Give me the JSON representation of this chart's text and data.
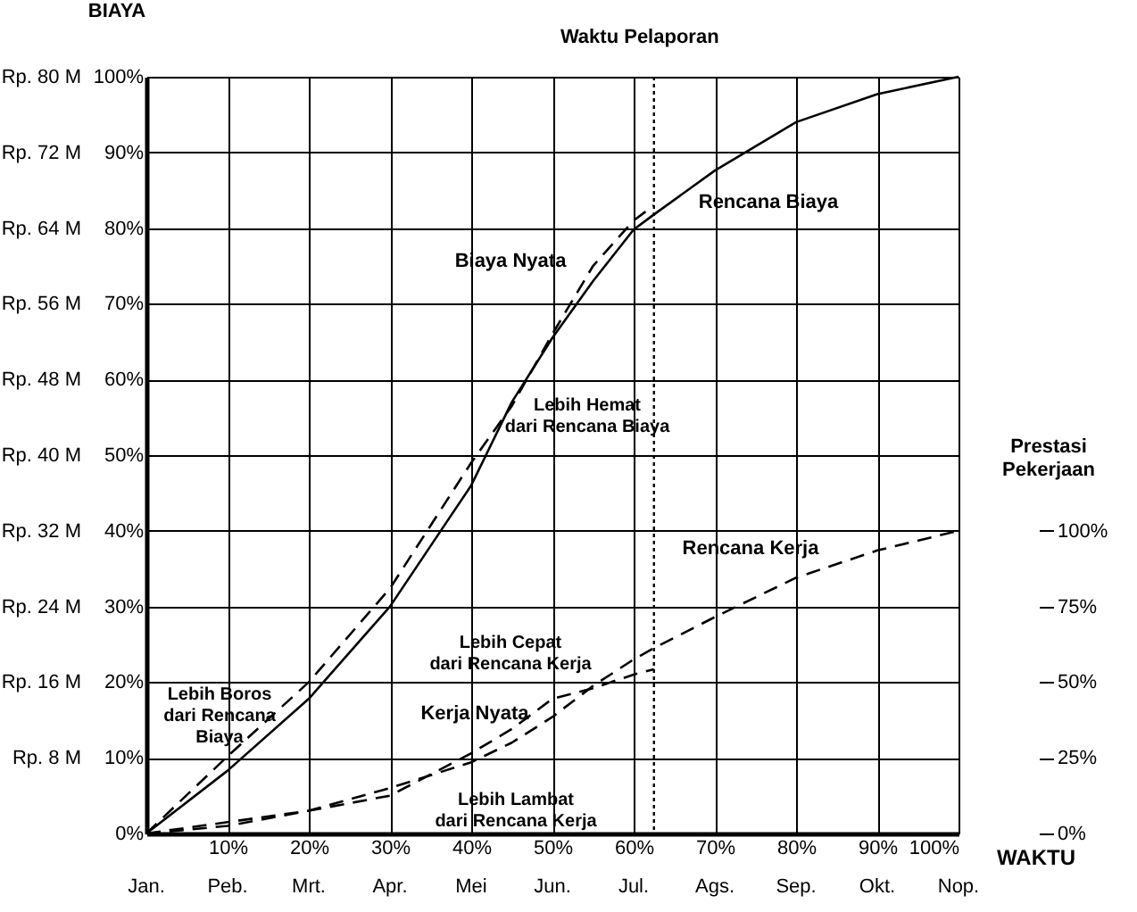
{
  "chart_data": {
    "type": "line",
    "xlabel": "WAKTU",
    "ylabel": "BIAYA",
    "y2label": "Prestasi\nPekerjaan",
    "xlim": [
      0,
      100
    ],
    "xticks": [
      {
        "value": 10,
        "label": "10%"
      },
      {
        "value": 20,
        "label": "20%"
      },
      {
        "value": 30,
        "label": "30%"
      },
      {
        "value": 40,
        "label": "40%"
      },
      {
        "value": 50,
        "label": "50%"
      },
      {
        "value": 60,
        "label": "60%"
      },
      {
        "value": 70,
        "label": "70%"
      },
      {
        "value": 80,
        "label": "80%"
      },
      {
        "value": 90,
        "label": "90%"
      },
      {
        "value": 100,
        "label": "100%"
      }
    ],
    "ylim": [
      0,
      100
    ],
    "yticks": [
      {
        "value": 0,
        "label": "0%"
      },
      {
        "value": 10,
        "label": "10%"
      },
      {
        "value": 20,
        "label": "20%"
      },
      {
        "value": 30,
        "label": "30%"
      },
      {
        "value": 40,
        "label": "40%"
      },
      {
        "value": 50,
        "label": "50%"
      },
      {
        "value": 60,
        "label": "60%"
      },
      {
        "value": 70,
        "label": "70%"
      },
      {
        "value": 80,
        "label": "80%"
      },
      {
        "value": 90,
        "label": "90%"
      },
      {
        "value": 100,
        "label": "100%"
      }
    ],
    "y3lim": [
      0,
      80
    ],
    "y3ticks": [
      {
        "value": 8,
        "label": "Rp. 8 M"
      },
      {
        "value": 16,
        "label": "Rp. 16 M"
      },
      {
        "value": 24,
        "label": "Rp. 24 M"
      },
      {
        "value": 32,
        "label": "Rp. 32 M"
      },
      {
        "value": 40,
        "label": "Rp. 40 M"
      },
      {
        "value": 48,
        "label": "Rp. 48 M"
      },
      {
        "value": 56,
        "label": "Rp. 56 M"
      },
      {
        "value": 64,
        "label": "Rp. 64 M"
      },
      {
        "value": 72,
        "label": "Rp. 72 M"
      },
      {
        "value": 80,
        "label": "Rp. 80 M"
      }
    ],
    "y2lim": [
      0,
      250
    ],
    "y2ticks": [
      {
        "value": 0,
        "label": "0%"
      },
      {
        "value": 25,
        "label": "25%"
      },
      {
        "value": 50,
        "label": "50%"
      },
      {
        "value": 75,
        "label": "75%"
      },
      {
        "value": 100,
        "label": "100%"
      }
    ],
    "grid": true,
    "legend": false,
    "series": [
      {
        "name": "Rencana Biaya",
        "color": "#000000",
        "line_style": "solid",
        "x": [
          0,
          10,
          20,
          30,
          40,
          45,
          50,
          55,
          60,
          62.5,
          70,
          80,
          90,
          100
        ],
        "values": [
          0,
          8.3,
          17.8,
          30,
          46,
          57,
          65.5,
          73,
          79.8,
          81.8,
          87.6,
          94,
          97.7,
          100
        ]
      },
      {
        "name": "Biaya Nyata",
        "color": "#000000",
        "line_style": "dashed",
        "x": [
          0,
          10,
          20,
          30,
          40,
          45,
          50,
          55,
          60,
          62.5
        ],
        "values": [
          0,
          10.2,
          20,
          32.4,
          49,
          56.5,
          66,
          75,
          81,
          83
        ]
      },
      {
        "name": "Rencana Kerja",
        "color": "#000000",
        "line_style": "dashed",
        "x": [
          0,
          10,
          20,
          30,
          40,
          45,
          50,
          55,
          60,
          62.5,
          70,
          80,
          90,
          100
        ],
        "values": [
          0,
          1,
          3,
          6,
          9.4,
          12,
          15.4,
          19.5,
          23,
          24.5,
          28.6,
          33.8,
          37.4,
          40
        ]
      },
      {
        "name": "Kerja Nyata",
        "color": "#000000",
        "line_style": "dashed",
        "x": [
          0,
          10,
          20,
          30,
          40,
          45,
          50,
          55,
          60,
          62.5
        ],
        "values": [
          0,
          1.5,
          3,
          5,
          10.6,
          13.8,
          17.8,
          19.2,
          21,
          21.7
        ]
      }
    ],
    "ref_lines": [
      {
        "axis": "x",
        "value": 62.5,
        "label": "Waktu Pelaporan",
        "line_style": "dotted",
        "color": "#000000"
      }
    ],
    "annotations": [
      "Lebih Boros\ndari Rencana\nBiaya",
      "Lebih Hemat\ndari Rencana Biaya",
      "Lebih Cepat\ndari Rencana Kerja",
      "Lebih Lambat\ndari Rencana Kerja",
      "Jan.",
      "Peb.",
      "Mrt.",
      "Apr.",
      "Mei",
      "Jun.",
      "Jul.",
      "Ags.",
      "Sep.",
      "Okt.",
      "Nop."
    ]
  }
}
